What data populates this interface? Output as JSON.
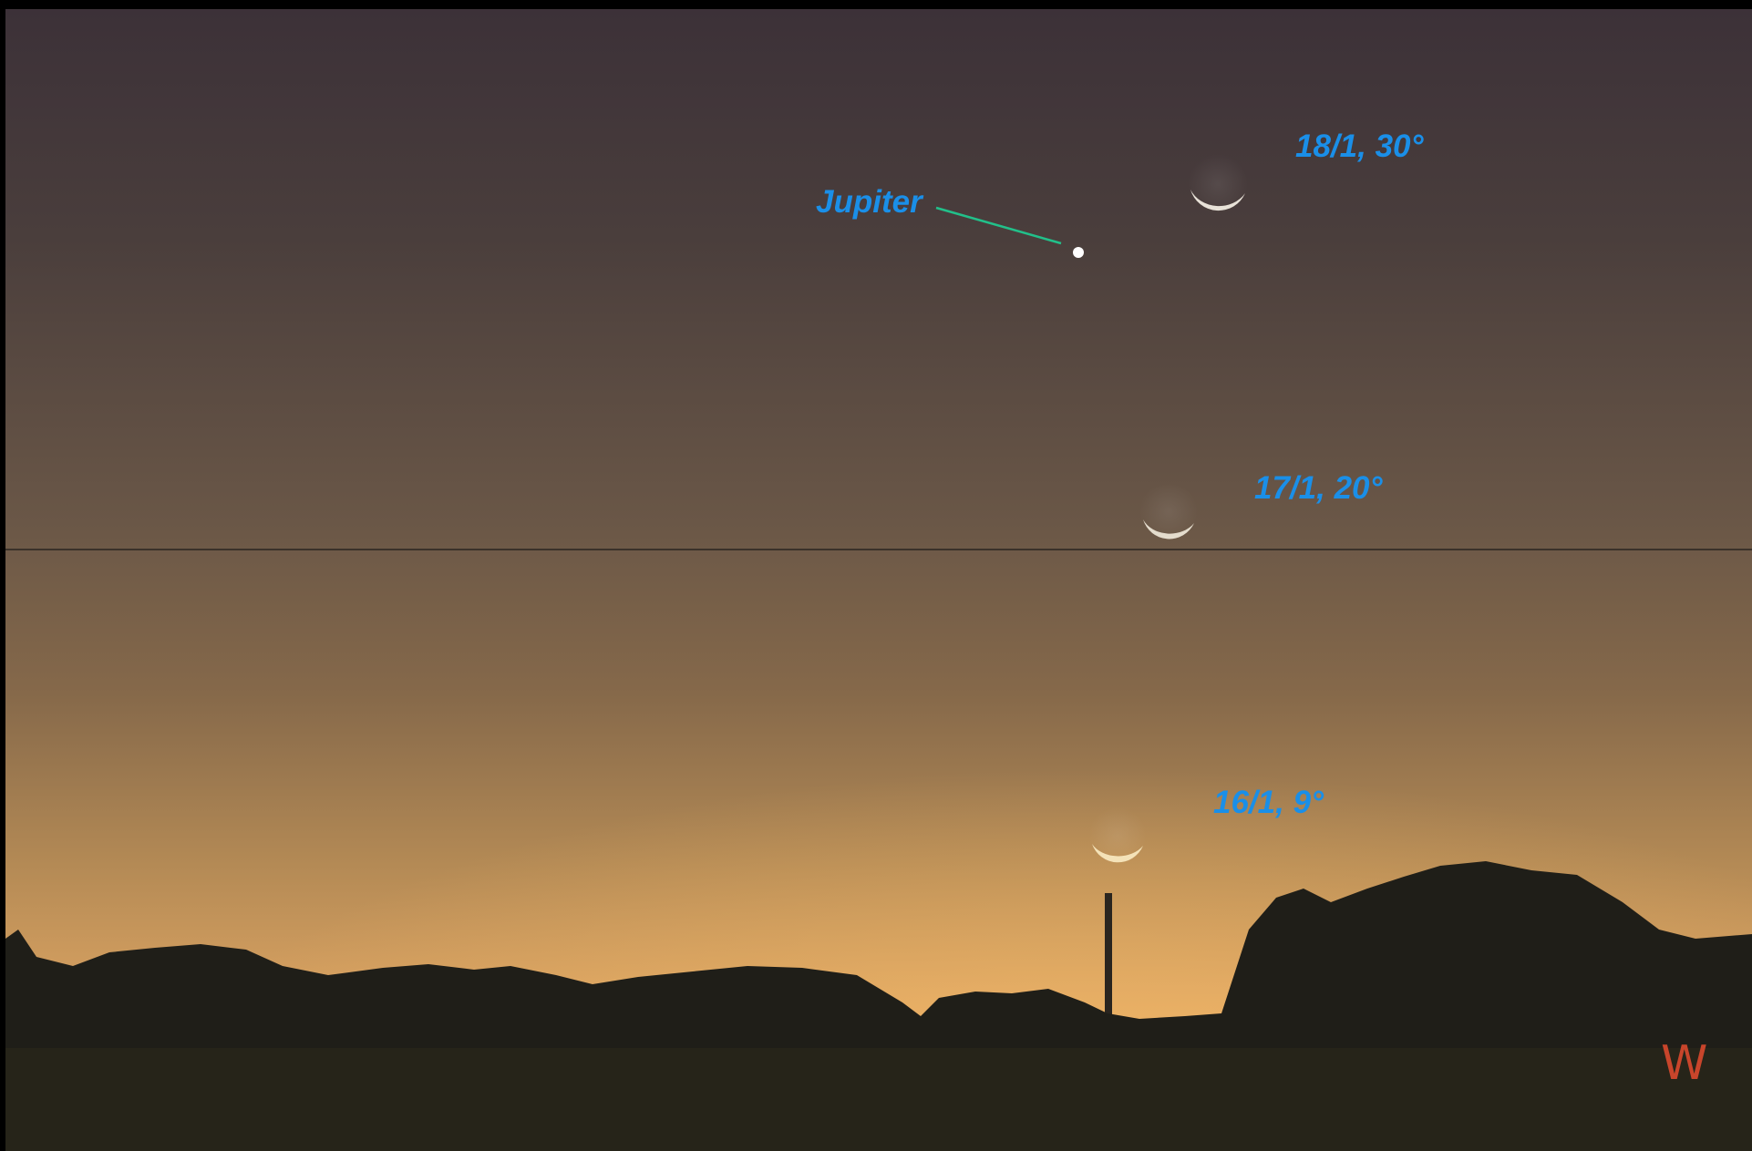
{
  "labels": {
    "jupiter": "Jupiter",
    "moon_18": "18/1, 30°",
    "moon_17": "17/1, 20°",
    "moon_16": "16/1, 9°",
    "direction": "W"
  }
}
